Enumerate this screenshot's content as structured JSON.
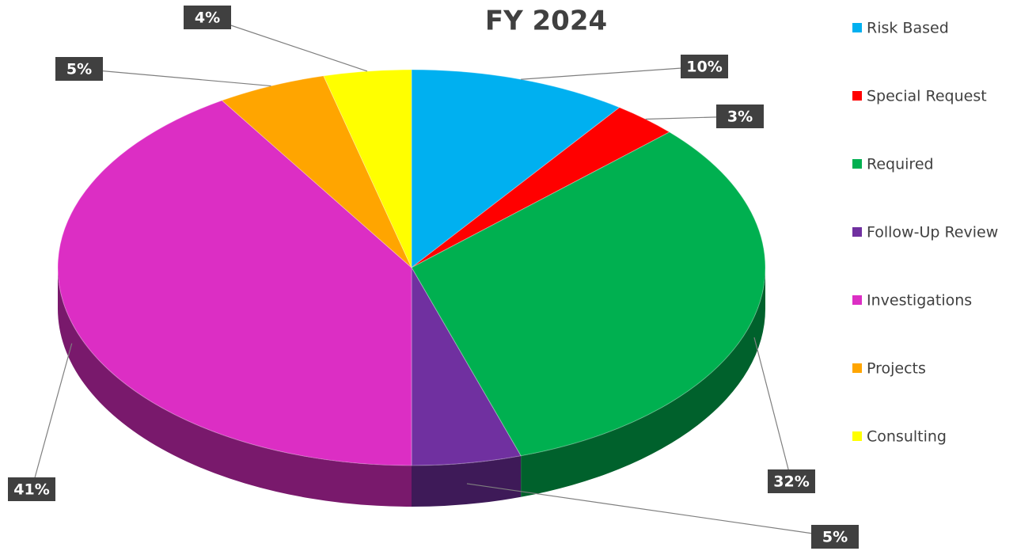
{
  "chart_data": {
    "type": "pie",
    "title": "FY 2024",
    "categories": [
      "Risk Based",
      "Special Request",
      "Required",
      "Follow-Up Review",
      "Investigations",
      "Projects",
      "Consulting"
    ],
    "values": [
      10,
      3,
      32,
      5,
      41,
      5,
      4
    ],
    "value_labels": [
      "10%",
      "3%",
      "32%",
      "5%",
      "41%",
      "5%",
      "4%"
    ],
    "colors": [
      "#00b0f0",
      "#ff0000",
      "#00b050",
      "#7030a0",
      "#dc2ec4",
      "#ffa500",
      "#ffff00"
    ],
    "legend": "right"
  }
}
